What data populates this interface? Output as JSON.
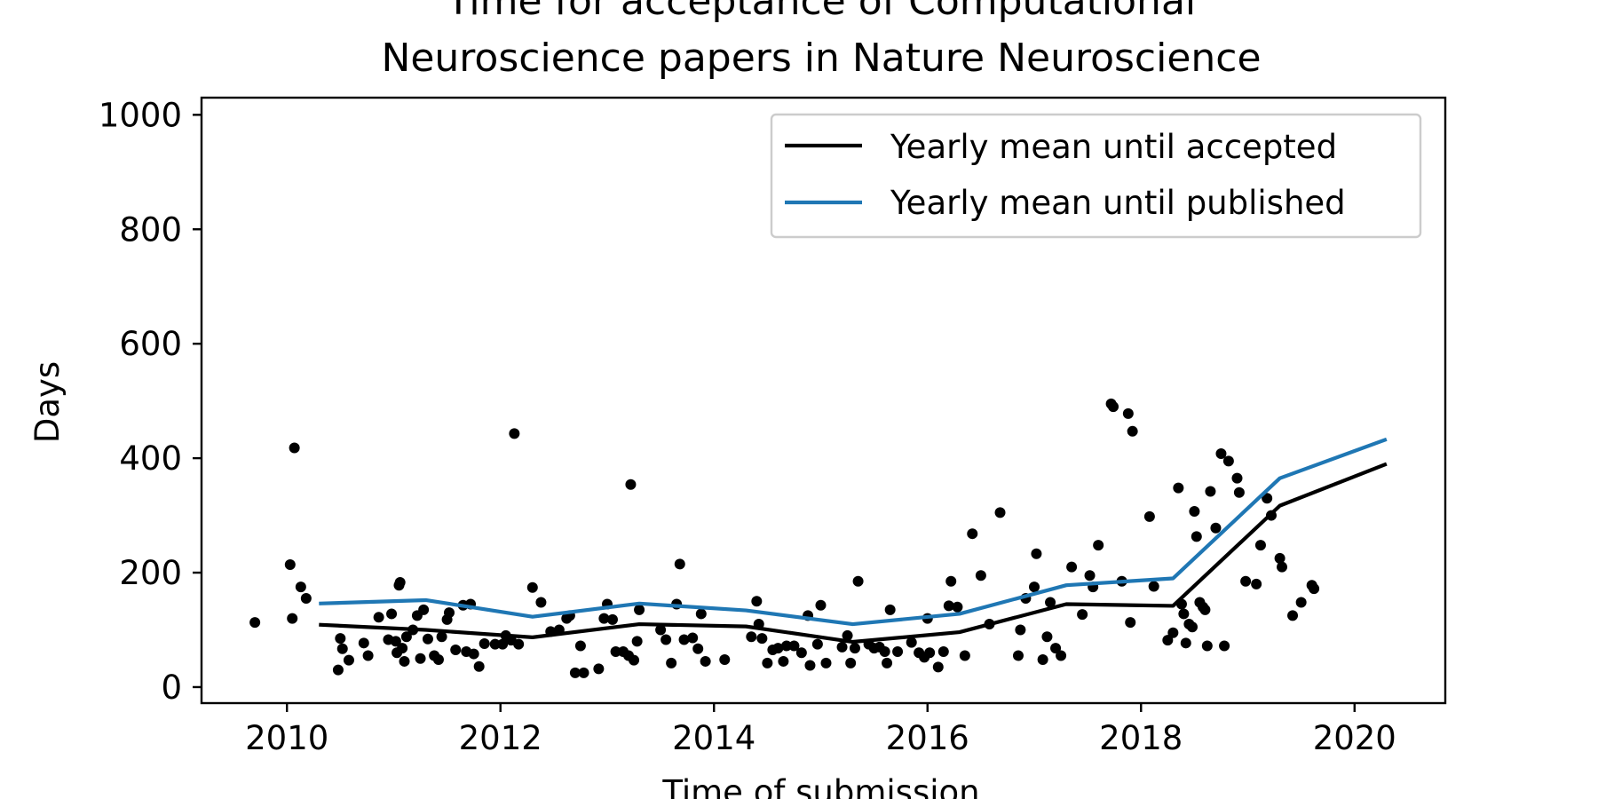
{
  "chart_data": {
    "type": "scatter",
    "title_lines": [
      "Time for acceptance of Computational",
      "Neuroscience papers in Nature Neuroscience"
    ],
    "xlabel": "Time of submission",
    "ylabel": "Days",
    "xlim": [
      2009.2,
      2020.85
    ],
    "ylim": [
      -28,
      1030
    ],
    "xticks": [
      2010,
      2012,
      2014,
      2016,
      2018,
      2020
    ],
    "yticks": [
      0,
      200,
      400,
      600,
      800,
      1000
    ],
    "legend_position": "top-right",
    "series": [
      {
        "name": "Yearly mean until accepted",
        "kind": "line",
        "color": "#000000",
        "x": [
          2010.3,
          2011.3,
          2012.3,
          2013.3,
          2014.3,
          2015.3,
          2016.3,
          2017.3,
          2018.3,
          2019.3,
          2020.3
        ],
        "y": [
          109,
          100,
          87,
          110,
          106,
          79,
          96,
          145,
          142,
          317,
          390
        ]
      },
      {
        "name": "Yearly mean until published",
        "kind": "line",
        "color": "#1f77b4",
        "x": [
          2010.3,
          2011.3,
          2012.3,
          2013.3,
          2014.3,
          2015.3,
          2016.3,
          2017.3,
          2018.3,
          2019.3,
          2020.3
        ],
        "y": [
          146,
          152,
          123,
          146,
          134,
          110,
          128,
          178,
          190,
          365,
          433
        ]
      },
      {
        "kind": "points",
        "color": "#000000",
        "points": [
          [
            2009.7,
            113
          ],
          [
            2010.03,
            214
          ],
          [
            2010.05,
            120
          ],
          [
            2010.07,
            418
          ],
          [
            2010.13,
            175
          ],
          [
            2010.18,
            155
          ],
          [
            2010.48,
            30
          ],
          [
            2010.5,
            85
          ],
          [
            2010.52,
            67
          ],
          [
            2010.58,
            47
          ],
          [
            2010.72,
            77
          ],
          [
            2010.76,
            55
          ],
          [
            2010.86,
            122
          ],
          [
            2010.95,
            83
          ],
          [
            2010.98,
            128
          ],
          [
            2011.02,
            80
          ],
          [
            2011.03,
            60
          ],
          [
            2011.05,
            178
          ],
          [
            2011.06,
            183
          ],
          [
            2011.08,
            68
          ],
          [
            2011.1,
            45
          ],
          [
            2011.12,
            88
          ],
          [
            2011.18,
            100
          ],
          [
            2011.22,
            125
          ],
          [
            2011.25,
            50
          ],
          [
            2011.28,
            135
          ],
          [
            2011.32,
            84
          ],
          [
            2011.38,
            55
          ],
          [
            2011.42,
            48
          ],
          [
            2011.45,
            88
          ],
          [
            2011.5,
            118
          ],
          [
            2011.52,
            130
          ],
          [
            2011.58,
            65
          ],
          [
            2011.65,
            143
          ],
          [
            2011.68,
            62
          ],
          [
            2011.72,
            145
          ],
          [
            2011.75,
            58
          ],
          [
            2011.8,
            36
          ],
          [
            2011.85,
            76
          ],
          [
            2011.95,
            75
          ],
          [
            2012.02,
            75
          ],
          [
            2012.05,
            90
          ],
          [
            2012.1,
            82
          ],
          [
            2012.13,
            443
          ],
          [
            2012.17,
            75
          ],
          [
            2012.3,
            174
          ],
          [
            2012.38,
            148
          ],
          [
            2012.47,
            97
          ],
          [
            2012.55,
            100
          ],
          [
            2012.62,
            120
          ],
          [
            2012.65,
            125
          ],
          [
            2012.7,
            25
          ],
          [
            2012.75,
            72
          ],
          [
            2012.78,
            25
          ],
          [
            2012.92,
            32
          ],
          [
            2012.97,
            120
          ],
          [
            2013.0,
            145
          ],
          [
            2013.05,
            118
          ],
          [
            2013.08,
            62
          ],
          [
            2013.15,
            62
          ],
          [
            2013.2,
            55
          ],
          [
            2013.25,
            47
          ],
          [
            2013.22,
            354
          ],
          [
            2013.28,
            80
          ],
          [
            2013.3,
            135
          ],
          [
            2013.5,
            100
          ],
          [
            2013.55,
            83
          ],
          [
            2013.6,
            42
          ],
          [
            2013.65,
            145
          ],
          [
            2013.68,
            215
          ],
          [
            2013.72,
            83
          ],
          [
            2013.8,
            86
          ],
          [
            2013.85,
            67
          ],
          [
            2013.88,
            128
          ],
          [
            2013.92,
            45
          ],
          [
            2014.1,
            48
          ],
          [
            2014.35,
            88
          ],
          [
            2014.4,
            150
          ],
          [
            2014.42,
            110
          ],
          [
            2014.45,
            85
          ],
          [
            2014.5,
            42
          ],
          [
            2014.55,
            65
          ],
          [
            2014.6,
            68
          ],
          [
            2014.65,
            45
          ],
          [
            2014.68,
            72
          ],
          [
            2014.75,
            72
          ],
          [
            2014.82,
            60
          ],
          [
            2014.88,
            125
          ],
          [
            2014.9,
            38
          ],
          [
            2014.97,
            75
          ],
          [
            2015.0,
            143
          ],
          [
            2015.05,
            42
          ],
          [
            2015.2,
            70
          ],
          [
            2015.25,
            90
          ],
          [
            2015.28,
            42
          ],
          [
            2015.32,
            68
          ],
          [
            2015.35,
            185
          ],
          [
            2015.45,
            75
          ],
          [
            2015.5,
            68
          ],
          [
            2015.55,
            70
          ],
          [
            2015.6,
            62
          ],
          [
            2015.62,
            42
          ],
          [
            2015.65,
            135
          ],
          [
            2015.72,
            62
          ],
          [
            2015.85,
            78
          ],
          [
            2015.92,
            60
          ],
          [
            2015.97,
            52
          ],
          [
            2016.0,
            120
          ],
          [
            2016.02,
            60
          ],
          [
            2016.1,
            35
          ],
          [
            2016.15,
            62
          ],
          [
            2016.2,
            142
          ],
          [
            2016.22,
            185
          ],
          [
            2016.28,
            140
          ],
          [
            2016.35,
            55
          ],
          [
            2016.42,
            268
          ],
          [
            2016.5,
            195
          ],
          [
            2016.58,
            110
          ],
          [
            2016.68,
            305
          ],
          [
            2016.85,
            55
          ],
          [
            2016.87,
            100
          ],
          [
            2016.92,
            155
          ],
          [
            2017.0,
            175
          ],
          [
            2017.02,
            233
          ],
          [
            2017.08,
            48
          ],
          [
            2017.12,
            88
          ],
          [
            2017.15,
            148
          ],
          [
            2017.2,
            68
          ],
          [
            2017.25,
            55
          ],
          [
            2017.35,
            210
          ],
          [
            2017.45,
            127
          ],
          [
            2017.52,
            195
          ],
          [
            2017.55,
            175
          ],
          [
            2017.6,
            248
          ],
          [
            2017.72,
            495
          ],
          [
            2017.74,
            490
          ],
          [
            2017.82,
            185
          ],
          [
            2017.88,
            478
          ],
          [
            2017.9,
            113
          ],
          [
            2017.92,
            447
          ],
          [
            2018.08,
            298
          ],
          [
            2018.12,
            176
          ],
          [
            2018.25,
            82
          ],
          [
            2018.3,
            95
          ],
          [
            2018.35,
            348
          ],
          [
            2018.38,
            145
          ],
          [
            2018.4,
            128
          ],
          [
            2018.42,
            77
          ],
          [
            2018.45,
            110
          ],
          [
            2018.48,
            105
          ],
          [
            2018.5,
            307
          ],
          [
            2018.52,
            263
          ],
          [
            2018.55,
            148
          ],
          [
            2018.58,
            140
          ],
          [
            2018.6,
            135
          ],
          [
            2018.62,
            72
          ],
          [
            2018.65,
            342
          ],
          [
            2018.7,
            278
          ],
          [
            2018.75,
            408
          ],
          [
            2018.78,
            72
          ],
          [
            2018.82,
            395
          ],
          [
            2018.9,
            365
          ],
          [
            2018.92,
            340
          ],
          [
            2018.98,
            185
          ],
          [
            2019.08,
            180
          ],
          [
            2019.12,
            248
          ],
          [
            2019.18,
            330
          ],
          [
            2019.22,
            300
          ],
          [
            2019.3,
            225
          ],
          [
            2019.32,
            210
          ],
          [
            2019.42,
            125
          ],
          [
            2019.5,
            148
          ],
          [
            2019.6,
            178
          ],
          [
            2019.62,
            172
          ]
        ]
      }
    ]
  }
}
